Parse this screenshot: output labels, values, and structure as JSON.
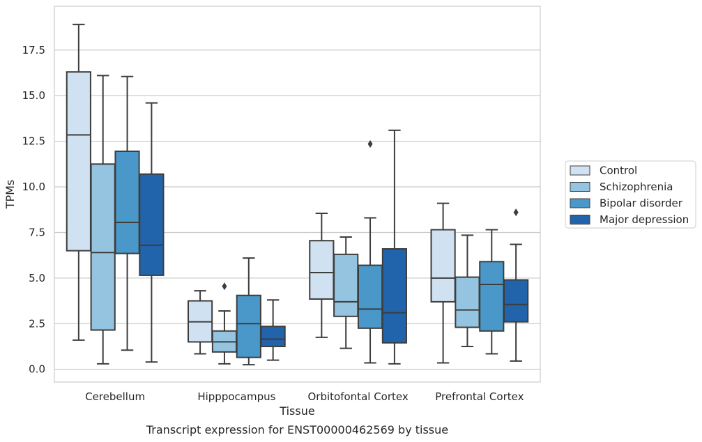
{
  "chart_data": {
    "type": "box",
    "title": "",
    "caption": "Transcript expression for ENST00000462569 by tissue",
    "xlabel": "Tissue",
    "ylabel": "TPMs",
    "ylim": [
      -0.7,
      19.9
    ],
    "yticks": [
      0.0,
      2.5,
      5.0,
      7.5,
      10.0,
      12.5,
      15.0,
      17.5
    ],
    "ytick_labels": [
      "0.0",
      "2.5",
      "5.0",
      "7.5",
      "10.0",
      "12.5",
      "15.0",
      "17.5"
    ],
    "grid": "horizontal",
    "legend_position": "right",
    "categories": [
      "Cerebellum",
      "Hipppocampus",
      "Orbitofontal Cortex",
      "Prefrontal Cortex"
    ],
    "series": [
      {
        "name": "Control",
        "color": "#d0e1f2",
        "boxes": [
          {
            "whisker_low": 1.6,
            "q1": 6.5,
            "median": 12.85,
            "q3": 16.3,
            "whisker_high": 18.9,
            "outliers": []
          },
          {
            "whisker_low": 0.85,
            "q1": 1.5,
            "median": 2.6,
            "q3": 3.75,
            "whisker_high": 4.3,
            "outliers": []
          },
          {
            "whisker_low": 1.75,
            "q1": 3.85,
            "median": 5.3,
            "q3": 7.05,
            "whisker_high": 8.55,
            "outliers": []
          },
          {
            "whisker_low": 0.35,
            "q1": 3.7,
            "median": 5.0,
            "q3": 7.65,
            "whisker_high": 9.1,
            "outliers": []
          }
        ]
      },
      {
        "name": "Schizophrenia",
        "color": "#94c4df",
        "boxes": [
          {
            "whisker_low": 0.3,
            "q1": 2.15,
            "median": 6.4,
            "q3": 11.25,
            "whisker_high": 16.1,
            "outliers": []
          },
          {
            "whisker_low": 0.3,
            "q1": 0.95,
            "median": 1.5,
            "q3": 2.1,
            "whisker_high": 3.2,
            "outliers": [
              4.55
            ]
          },
          {
            "whisker_low": 1.15,
            "q1": 2.9,
            "median": 3.7,
            "q3": 6.3,
            "whisker_high": 7.25,
            "outliers": []
          },
          {
            "whisker_low": 1.25,
            "q1": 2.3,
            "median": 3.25,
            "q3": 5.05,
            "whisker_high": 7.35,
            "outliers": []
          }
        ]
      },
      {
        "name": "Bipolar disorder",
        "color": "#4a98c9",
        "boxes": [
          {
            "whisker_low": 1.05,
            "q1": 6.35,
            "median": 8.05,
            "q3": 11.95,
            "whisker_high": 16.05,
            "outliers": []
          },
          {
            "whisker_low": 0.25,
            "q1": 0.65,
            "median": 2.5,
            "q3": 4.05,
            "whisker_high": 6.1,
            "outliers": []
          },
          {
            "whisker_low": 0.35,
            "q1": 2.25,
            "median": 3.3,
            "q3": 5.7,
            "whisker_high": 8.3,
            "outliers": [
              12.35
            ]
          },
          {
            "whisker_low": 0.85,
            "q1": 2.1,
            "median": 4.65,
            "q3": 5.9,
            "whisker_high": 7.65,
            "outliers": []
          }
        ]
      },
      {
        "name": "Major depression",
        "color": "#2264ab",
        "boxes": [
          {
            "whisker_low": 0.4,
            "q1": 5.15,
            "median": 6.8,
            "q3": 10.7,
            "whisker_high": 14.6,
            "outliers": []
          },
          {
            "whisker_low": 0.5,
            "q1": 1.25,
            "median": 1.65,
            "q3": 2.35,
            "whisker_high": 3.8,
            "outliers": []
          },
          {
            "whisker_low": 0.3,
            "q1": 1.45,
            "median": 3.1,
            "q3": 6.6,
            "whisker_high": 13.1,
            "outliers": []
          },
          {
            "whisker_low": 0.45,
            "q1": 2.6,
            "median": 3.55,
            "q3": 4.9,
            "whisker_high": 6.85,
            "outliers": [
              8.6
            ]
          }
        ]
      }
    ]
  }
}
